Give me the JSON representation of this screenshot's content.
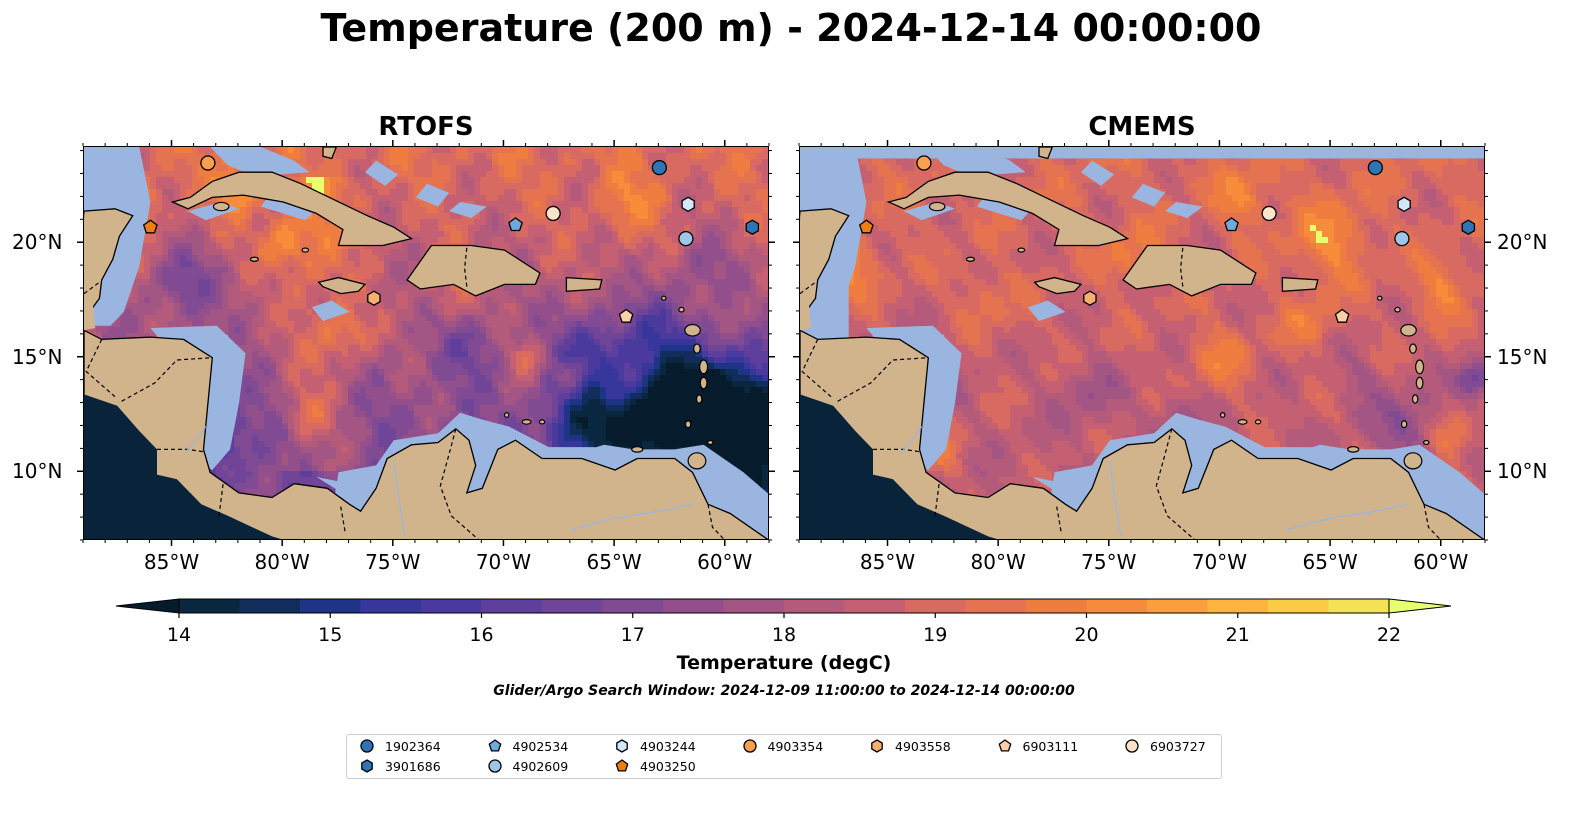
{
  "title": "Temperature (200 m) - 2024-12-14 00:00:00",
  "panels": [
    {
      "title": "RTOFS",
      "variant": "rtofs"
    },
    {
      "title": "CMEMS",
      "variant": "cmems"
    }
  ],
  "map": {
    "lon_range": [
      -89.0,
      -58.0
    ],
    "lat_range": [
      7.0,
      24.2
    ],
    "lon_ticks": [
      {
        "value": -85,
        "label": "85°W"
      },
      {
        "value": -80,
        "label": "80°W"
      },
      {
        "value": -75,
        "label": "75°W"
      },
      {
        "value": -70,
        "label": "70°W"
      },
      {
        "value": -65,
        "label": "65°W"
      },
      {
        "value": -60,
        "label": "60°W"
      }
    ],
    "lat_ticks": [
      {
        "value": 20,
        "label": "20°N"
      },
      {
        "value": 15,
        "label": "15°N"
      },
      {
        "value": 10,
        "label": "10°N"
      }
    ],
    "colors": {
      "land": "#d2b48c",
      "shelf": "#9ab6e0",
      "pacific": "#08233a",
      "coast": "#000000"
    }
  },
  "colorbar": {
    "min": 14,
    "max": 22,
    "step": 0.5,
    "ticks": [
      "14",
      "15",
      "16",
      "17",
      "18",
      "19",
      "20",
      "21",
      "22"
    ],
    "label": "Temperature (degC)",
    "colors": [
      "#0a2740",
      "#112d5c",
      "#1e3486",
      "#37369a",
      "#4b3a9e",
      "#5e3f9c",
      "#704598",
      "#814b93",
      "#924f8b",
      "#a35683",
      "#b45b7b",
      "#c56072",
      "#d86a62",
      "#e6734f",
      "#f07d40",
      "#f78d3a",
      "#fb9f3a",
      "#fcb43e",
      "#f9cc44",
      "#f2e254"
    ],
    "under": "#061c2c",
    "over": "#eaff70"
  },
  "search_window": "Glider/Argo Search Window: 2024-12-09 11:00:00 to 2024-12-14 00:00:00",
  "floats": [
    {
      "id": "1902364",
      "lon": -63.0,
      "lat": 23.3,
      "marker": "circle",
      "color": "#2e75b6"
    },
    {
      "id": "3901686",
      "lon": -58.8,
      "lat": 20.7,
      "marker": "hexagon",
      "color": "#2e75b6"
    },
    {
      "id": "4902534",
      "lon": -69.5,
      "lat": 20.8,
      "marker": "pentagon",
      "color": "#6fa8dc"
    },
    {
      "id": "4902609",
      "lon": -61.8,
      "lat": 20.2,
      "marker": "circle",
      "color": "#9fc5e8"
    },
    {
      "id": "4903244",
      "lon": -61.7,
      "lat": 21.7,
      "marker": "hexagon",
      "color": "#d0e8f7"
    },
    {
      "id": "4903250",
      "lon": -86.0,
      "lat": 20.7,
      "marker": "pentagon",
      "color": "#f07d10"
    },
    {
      "id": "4903354",
      "lon": -83.4,
      "lat": 23.5,
      "marker": "circle",
      "color": "#f7a050"
    },
    {
      "id": "4903558",
      "lon": -75.9,
      "lat": 17.6,
      "marker": "hexagon",
      "color": "#f8b070"
    },
    {
      "id": "6903111",
      "lon": -64.5,
      "lat": 16.8,
      "marker": "pentagon",
      "color": "#fbd0a8"
    },
    {
      "id": "6903727",
      "lon": -67.8,
      "lat": 21.3,
      "marker": "circle",
      "color": "#fde3c8"
    }
  ]
}
